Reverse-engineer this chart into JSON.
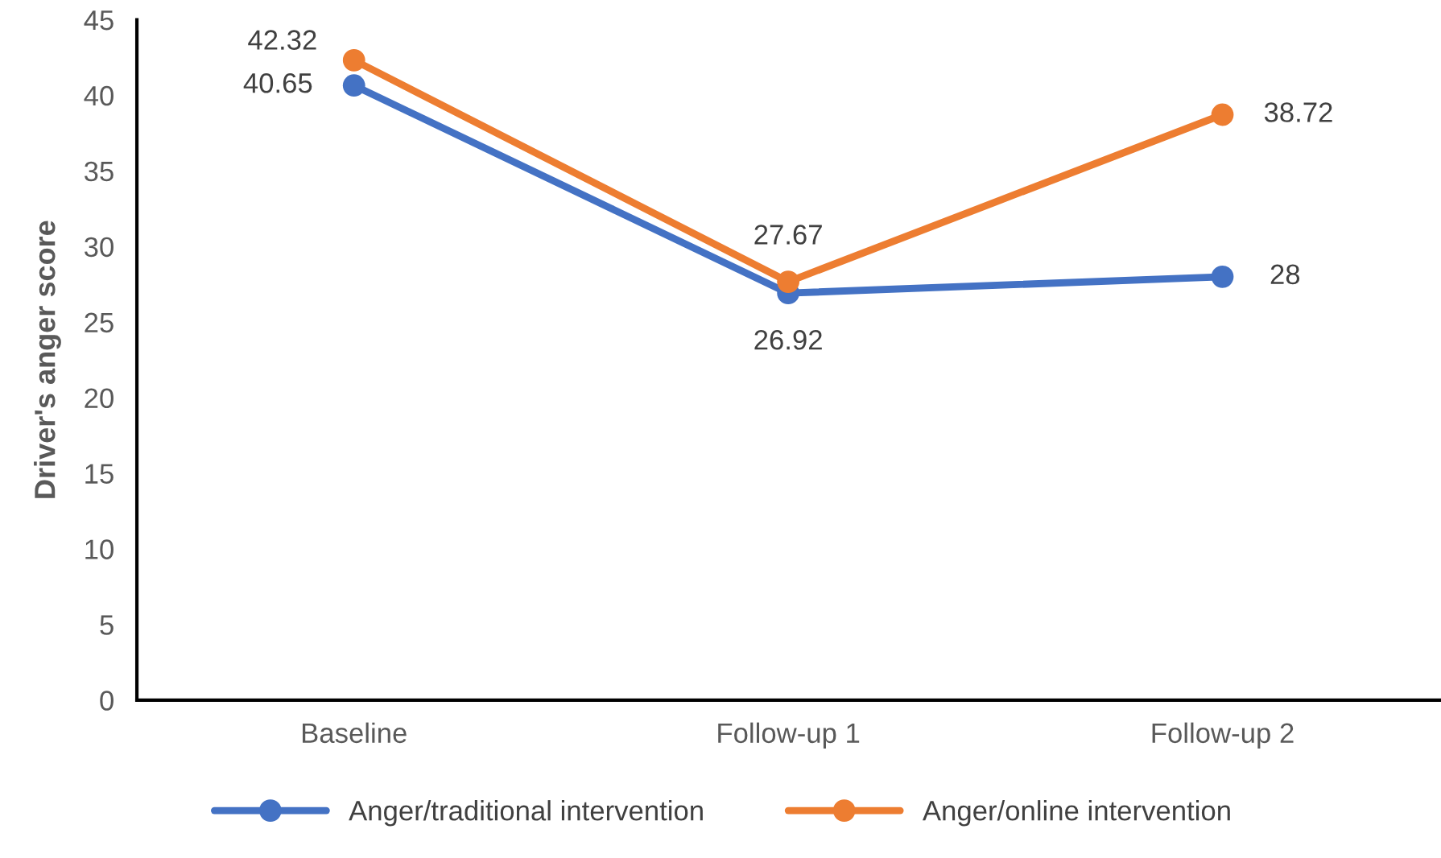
{
  "chart_data": {
    "type": "line",
    "ylabel": "Driver's anger score",
    "categories": [
      "Baseline",
      "Follow-up 1",
      "Follow-up 2"
    ],
    "series": [
      {
        "name": "Anger/traditional intervention",
        "color": "#4472c4",
        "values": [
          40.65,
          26.92,
          28
        ]
      },
      {
        "name": "Anger/online intervention",
        "color": "#ed7d31",
        "values": [
          42.32,
          27.67,
          38.72
        ]
      }
    ],
    "ylim": [
      0,
      45
    ],
    "yticks": [
      0,
      5,
      10,
      15,
      20,
      25,
      30,
      35,
      40,
      45
    ],
    "grid": false,
    "legend": "bottom",
    "marker": "circle",
    "line_style": "solid",
    "data_labels": true
  }
}
